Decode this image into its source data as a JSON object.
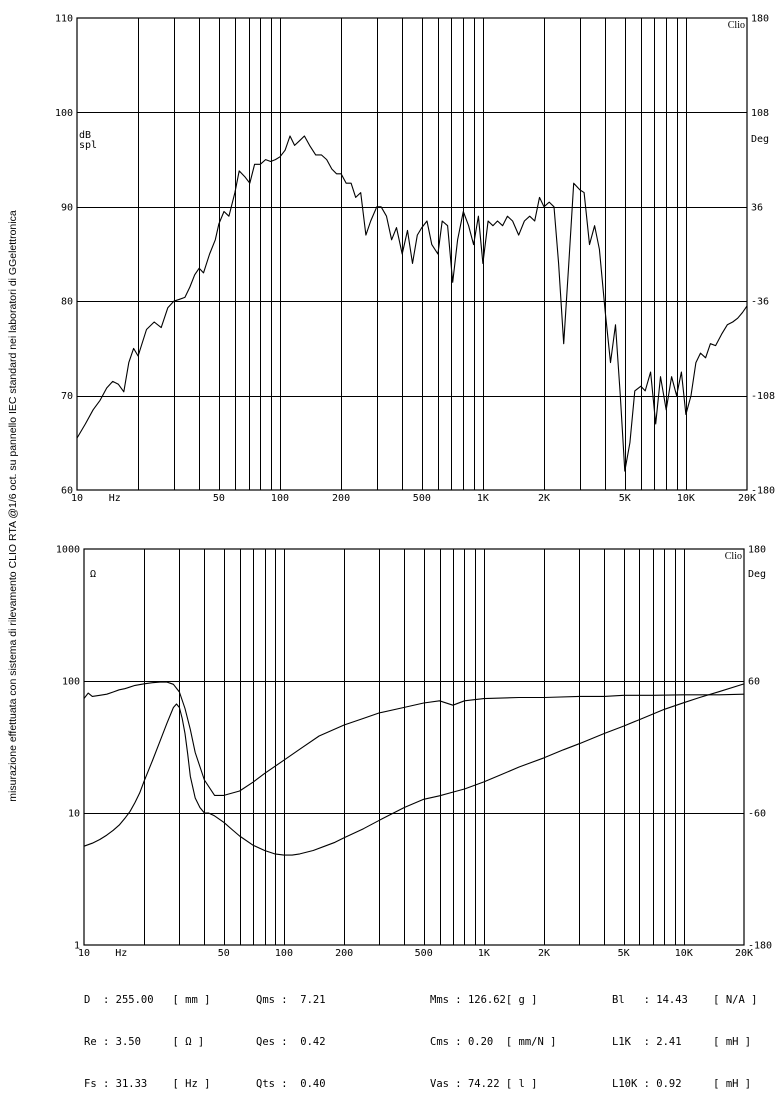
{
  "side_note": "misurazione effettuata con sistema di rilevamento CLIO RTA @1/6 oct. su pannello IEC standard nei laboratori di GGelettronica",
  "chart_data": [
    {
      "type": "line",
      "brand": "Clio",
      "x_scale": "log",
      "xlim": [
        10,
        20000
      ],
      "x_tick_labels": [
        {
          "value": 10,
          "label": "10"
        },
        {
          "value": 50,
          "label": "50"
        },
        {
          "value": 100,
          "label": "100"
        },
        {
          "value": 200,
          "label": "200"
        },
        {
          "value": 500,
          "label": "500"
        },
        {
          "value": 1000,
          "label": "1K"
        },
        {
          "value": 2000,
          "label": "2K"
        },
        {
          "value": 5000,
          "label": "5K"
        },
        {
          "value": 10000,
          "label": "10K"
        },
        {
          "value": 20000,
          "label": "20K"
        }
      ],
      "x_unit": "Hz",
      "ylabel_line1": "dB",
      "ylabel_line2": "spl",
      "ylim": [
        60,
        110
      ],
      "y_ticks": [
        60,
        70,
        80,
        90,
        100,
        110
      ],
      "y2label": "Deg",
      "y2lim": [
        -180,
        180
      ],
      "y2_ticks": [
        -180,
        -108,
        -36,
        36,
        108,
        180
      ],
      "grid": true,
      "series": [
        {
          "x": [
            10,
            11,
            12,
            13,
            14,
            15,
            16,
            17,
            18,
            19,
            20,
            22,
            24,
            26,
            28,
            30,
            32,
            34,
            36,
            38,
            40,
            42,
            45,
            48,
            50,
            53,
            56,
            60,
            63,
            67,
            71,
            75,
            80,
            85,
            90,
            95,
            100,
            106,
            112,
            118,
            125,
            132,
            140,
            150,
            160,
            170,
            180,
            190,
            200,
            212,
            224,
            236,
            250,
            265,
            280,
            300,
            315,
            335,
            355,
            375,
            400,
            425,
            450,
            475,
            500,
            530,
            560,
            600,
            630,
            670,
            710,
            750,
            800,
            850,
            900,
            950,
            1000,
            1060,
            1120,
            1180,
            1250,
            1320,
            1400,
            1500,
            1600,
            1700,
            1800,
            1900,
            2000,
            2120,
            2240,
            2360,
            2500,
            2650,
            2800,
            3000,
            3150,
            3350,
            3550,
            3750,
            4000,
            4250,
            4500,
            4750,
            5000,
            5300,
            5600,
            6000,
            6300,
            6700,
            7100,
            7500,
            8000,
            8500,
            9000,
            9500,
            10000,
            10600,
            11200,
            11800,
            12500,
            13200,
            14000,
            15000,
            16000,
            17000,
            18000,
            19000,
            20000
          ],
          "values": [
            65.5,
            67,
            68.5,
            69.5,
            70.8,
            71.5,
            71.2,
            70.4,
            73.5,
            75,
            74.2,
            77,
            77.8,
            77.2,
            79.3,
            80,
            80.2,
            80.4,
            81.5,
            82.8,
            83.5,
            83,
            85,
            86.5,
            88.2,
            89.5,
            89,
            91.5,
            93.8,
            93.2,
            92.5,
            94.5,
            94.5,
            95,
            94.8,
            95,
            95.3,
            96,
            97.5,
            96.5,
            97,
            97.5,
            96.5,
            95.5,
            95.5,
            95,
            94,
            93.5,
            93.5,
            92.5,
            92.5,
            91,
            91.5,
            87,
            88.5,
            90,
            90,
            89,
            86.5,
            87.8,
            85,
            87.5,
            84,
            87,
            87.8,
            88.5,
            86,
            85,
            88.5,
            88,
            82,
            86.5,
            89.5,
            88,
            86,
            89,
            84,
            88.5,
            88,
            88.5,
            88,
            89,
            88.5,
            87,
            88.5,
            89,
            88.5,
            91,
            90,
            90.5,
            90,
            84,
            75.5,
            84,
            92.5,
            91.8,
            91.5,
            86,
            88,
            85.5,
            79,
            73.5,
            77.5,
            70,
            62,
            65,
            70.5,
            71,
            70.5,
            72.5,
            67,
            72,
            68.5,
            72,
            70,
            72.5,
            68,
            70,
            73.5,
            74.5,
            74,
            75.5,
            75.3,
            76.5,
            77.5,
            77.8,
            78.2,
            78.8,
            79.5
          ]
        }
      ]
    },
    {
      "type": "line",
      "brand": "Clio",
      "x_scale": "log",
      "xlim": [
        10,
        20000
      ],
      "x_tick_labels": [
        {
          "value": 10,
          "label": "10"
        },
        {
          "value": 50,
          "label": "50"
        },
        {
          "value": 100,
          "label": "100"
        },
        {
          "value": 200,
          "label": "200"
        },
        {
          "value": 500,
          "label": "500"
        },
        {
          "value": 1000,
          "label": "1K"
        },
        {
          "value": 2000,
          "label": "2K"
        },
        {
          "value": 5000,
          "label": "5K"
        },
        {
          "value": 10000,
          "label": "10K"
        },
        {
          "value": 20000,
          "label": "20K"
        }
      ],
      "x_unit": "Hz",
      "y_scale": "log",
      "ylabel": "Ω",
      "ylim": [
        1,
        1000
      ],
      "y_ticks": [
        1,
        10,
        100,
        1000
      ],
      "y2label": "Deg",
      "y2lim": [
        -180,
        180
      ],
      "y2_ticks": [
        -180,
        -60,
        60,
        180
      ],
      "grid": true,
      "series": [
        {
          "x": [
            10,
            11,
            12,
            13,
            14,
            15,
            16,
            17,
            18,
            19,
            20,
            22,
            24,
            26,
            28,
            29,
            30,
            31,
            32,
            33,
            34,
            36,
            38,
            40,
            42,
            45,
            50,
            55,
            60,
            70,
            80,
            90,
            100,
            110,
            120,
            140,
            160,
            180,
            200,
            250,
            300,
            400,
            500,
            600,
            700,
            800,
            1000,
            1200,
            1500,
            2000,
            2500,
            3000,
            4000,
            5000,
            6000,
            8000,
            10000,
            12000,
            15000,
            20000
          ],
          "values": [
            5.6,
            5.9,
            6.3,
            6.8,
            7.4,
            8.1,
            9.1,
            10.3,
            12,
            14.2,
            17.5,
            25,
            35,
            48,
            63,
            67,
            63,
            52,
            40,
            28,
            19,
            13,
            11,
            10,
            10,
            9.5,
            8.5,
            7.5,
            6.7,
            5.7,
            5.2,
            4.9,
            4.8,
            4.8,
            4.9,
            5.2,
            5.6,
            6,
            6.5,
            7.6,
            8.8,
            11,
            12.7,
            13.5,
            14.4,
            15.2,
            17.2,
            19.3,
            22.3,
            26.2,
            30.1,
            33.5,
            40,
            45.5,
            51,
            61,
            68.5,
            75,
            83,
            95
          ]
        },
        {
          "x": [
            10,
            10.5,
            11,
            12,
            13,
            14,
            15,
            16,
            18,
            20,
            22,
            24,
            26,
            27,
            28,
            30,
            32,
            34,
            36,
            40,
            45,
            50,
            60,
            70,
            80,
            100,
            120,
            150,
            200,
            250,
            300,
            400,
            500,
            600,
            700,
            800,
            1000,
            1500,
            2000,
            3000,
            4000,
            5000,
            7000,
            10000,
            15000,
            20000
          ],
          "values": [
            44,
            49,
            46,
            47,
            48,
            50,
            52,
            53,
            56,
            57.5,
            58.5,
            59,
            59,
            58,
            57,
            50,
            35,
            16,
            -5,
            -30,
            -44,
            -44,
            -40,
            -32,
            -24,
            -12,
            -2,
            10,
            20,
            26,
            31,
            36,
            40,
            42,
            38,
            42,
            44,
            45,
            45,
            46,
            46,
            47,
            47,
            47.5,
            47.5,
            48
          ]
        }
      ]
    }
  ],
  "params": {
    "col1": [
      {
        "name": "D ",
        "value": "255.00",
        "unit": "mm"
      },
      {
        "name": "Re",
        "value": "3.50",
        "unit": "Ω"
      },
      {
        "name": "Fs",
        "value": "31.33",
        "unit": "Hz"
      }
    ],
    "col2": [
      {
        "name": "Qms",
        "value": "7.21"
      },
      {
        "name": "Qes",
        "value": "0.42"
      },
      {
        "name": "Qts",
        "value": "0.40"
      }
    ],
    "col3": [
      {
        "name": "Mms",
        "value": "126.62",
        "unit": "g"
      },
      {
        "name": "Cms",
        "value": "0.20",
        "unit": "mm/N"
      },
      {
        "name": "Vas",
        "value": "74.22",
        "unit": "l"
      }
    ],
    "col4": [
      {
        "name": "Bl  ",
        "value": "14.43",
        "unit": "N/A"
      },
      {
        "name": "L1K ",
        "value": "2.41",
        "unit": "mH"
      },
      {
        "name": "L10K",
        "value": "0.92",
        "unit": "mH"
      }
    ]
  }
}
